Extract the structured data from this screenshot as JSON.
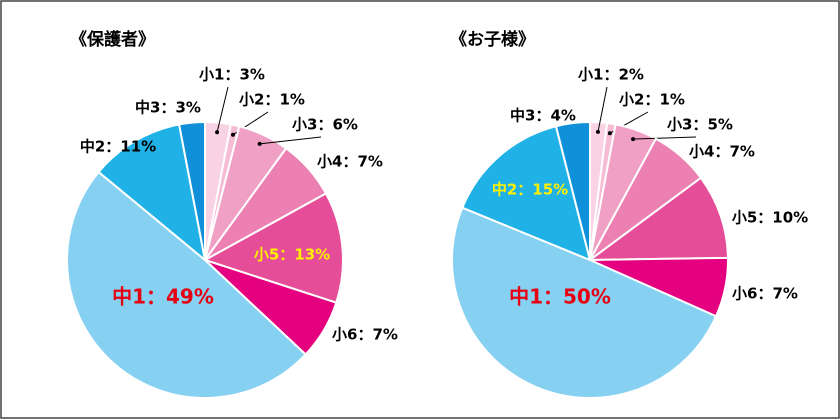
{
  "chart_data": [
    {
      "type": "pie",
      "title": "《保護者》",
      "values": [
        3,
        1,
        6,
        7,
        13,
        7,
        49,
        11,
        3
      ],
      "value_labels": [
        "小1：3%",
        "小2：1%",
        "小3：6%",
        "小4：7%",
        "小5：13%",
        "小6：7%",
        "中1：49%",
        "中2：11%",
        "中3：3%"
      ],
      "colors": [
        "#f9d3e3",
        "#f5bcd4",
        "#f0a0c4",
        "#ec80b2",
        "#e64d99",
        "#e4007f",
        "#86d0f2",
        "#20b2e6",
        "#1090d8"
      ],
      "label_colors": [
        "#000000",
        "#000000",
        "#000000",
        "#000000",
        "#fff100",
        "#000000",
        "#e60012",
        "#000000",
        "#000000"
      ]
    },
    {
      "type": "pie",
      "title": "《お子様》",
      "values": [
        2,
        1,
        5,
        7,
        10,
        7,
        50,
        15,
        4
      ],
      "value_labels": [
        "小1：2%",
        "小2：1%",
        "小3：5%",
        "小4：7%",
        "小5：10%",
        "小6：7%",
        "中1：50%",
        "中2：15%",
        "中3：4%"
      ],
      "colors": [
        "#f9d3e3",
        "#f5bcd4",
        "#f0a0c4",
        "#ec80b2",
        "#e64d99",
        "#e4007f",
        "#86d0f2",
        "#20b2e6",
        "#1090d8"
      ],
      "label_colors": [
        "#000000",
        "#000000",
        "#000000",
        "#000000",
        "#000000",
        "#000000",
        "#e60012",
        "#fff100",
        "#000000"
      ]
    }
  ]
}
